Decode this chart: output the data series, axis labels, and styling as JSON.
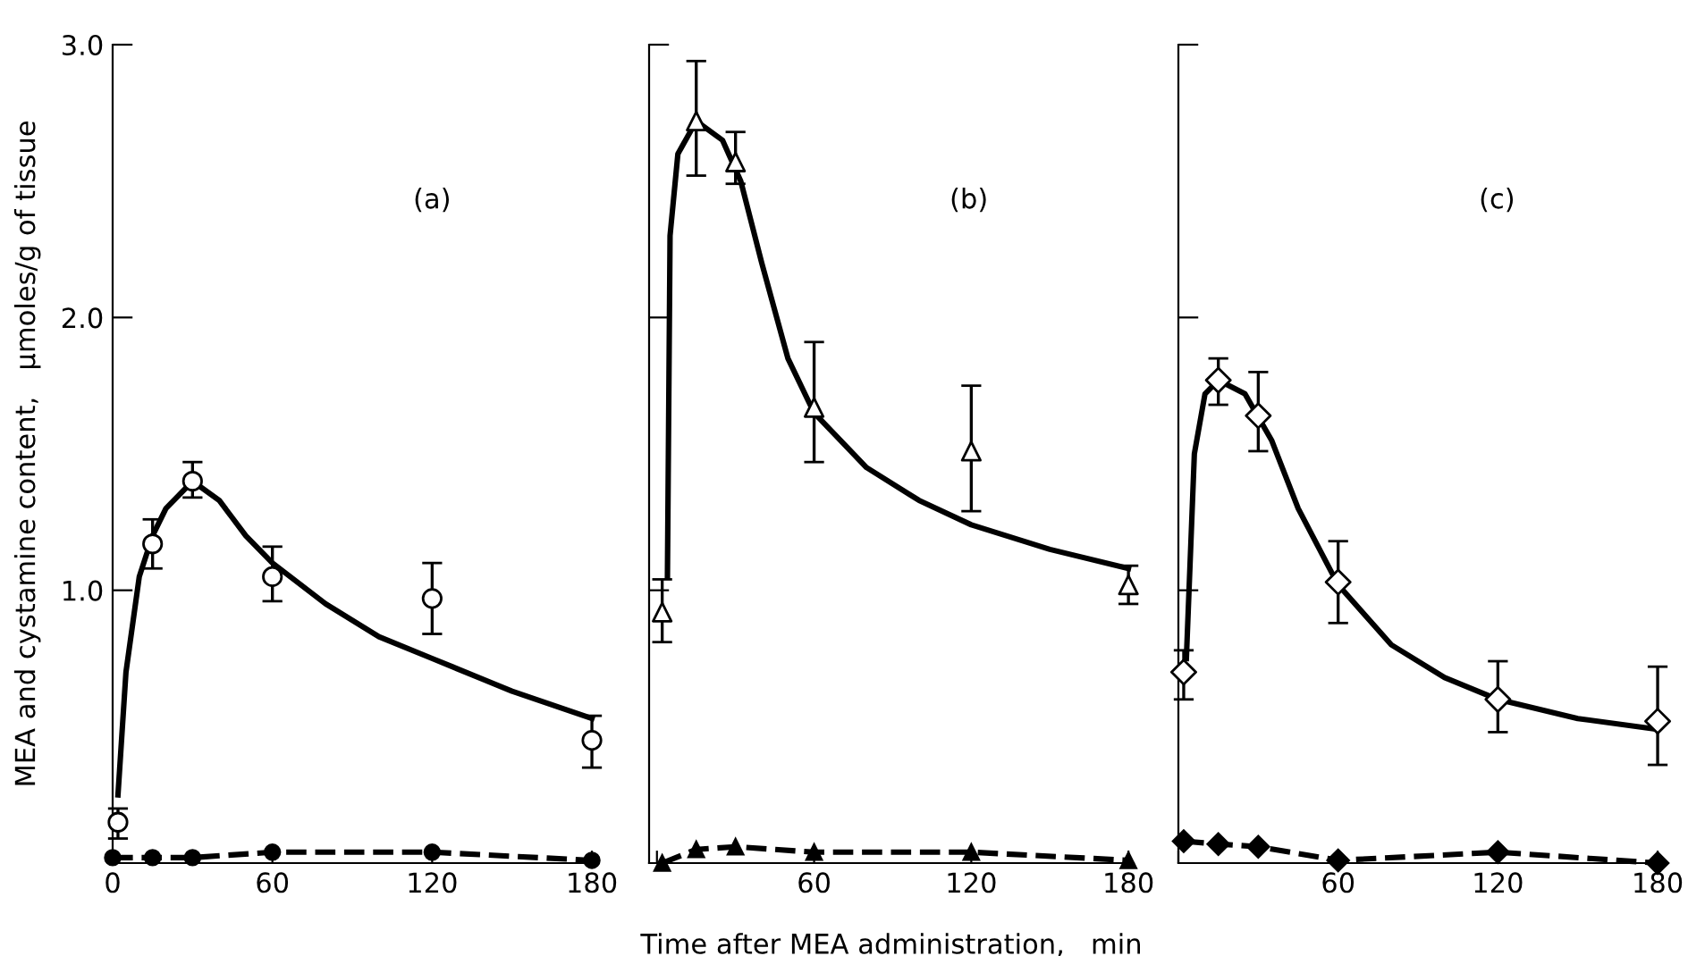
{
  "chart_data": [
    {
      "type": "scatter",
      "ylabel": "MEA and cystamine content,   μmoles/g of tissue",
      "annotations": [
        "(a)"
      ],
      "xlim": [
        0,
        182
      ],
      "ylim": [
        0,
        3.0
      ],
      "xticks": [
        0,
        60,
        120,
        180
      ],
      "yticks": [
        {
          "value": 1.0,
          "label": "1.0"
        },
        {
          "value": 2.0,
          "label": "2.0"
        },
        {
          "value": 3.0,
          "label": "3.0"
        }
      ],
      "grid": false,
      "legend": false,
      "series": [
        {
          "marker": "circle",
          "color": "#000000",
          "x": [
            2,
            15,
            30,
            60,
            120,
            180
          ],
          "values": [
            0.15,
            1.17,
            1.4,
            1.05,
            0.97,
            0.45
          ],
          "errors": [
            [
              0.09,
              0.2
            ],
            [
              1.08,
              1.26
            ],
            [
              1.34,
              1.47
            ],
            [
              0.96,
              1.16
            ],
            [
              0.84,
              1.1
            ],
            [
              0.35,
              0.54
            ]
          ]
        },
        {
          "type": "line",
          "marker": "none",
          "line_style": "solid",
          "color": "#000000",
          "x": [
            2,
            5,
            10,
            15,
            20,
            30,
            40,
            50,
            60,
            80,
            100,
            120,
            150,
            180
          ],
          "values": [
            0.25,
            0.7,
            1.05,
            1.2,
            1.3,
            1.4,
            1.33,
            1.2,
            1.1,
            0.95,
            0.83,
            0.75,
            0.63,
            0.53
          ]
        },
        {
          "type": "line",
          "marker": "circle",
          "line_style": "dashed",
          "color": "#000000",
          "x": [
            0,
            15,
            30,
            60,
            120,
            180
          ],
          "values": [
            0.02,
            0.02,
            0.02,
            0.04,
            0.04,
            0.01
          ]
        }
      ]
    },
    {
      "type": "scatter",
      "xlabel": "Time after MEA administration,   min",
      "annotations": [
        "(b)"
      ],
      "xlim": [
        -3,
        182
      ],
      "ylim": [
        0,
        3.0
      ],
      "xticks": [
        {
          "value": 0,
          "label": null
        },
        60,
        120,
        180
      ],
      "yticks": [
        {
          "value": 1.0,
          "label": null
        },
        {
          "value": 2.0,
          "label": null
        },
        {
          "value": 3.0,
          "label": null
        }
      ],
      "tick_labels": "x",
      "grid": false,
      "legend": false,
      "series": [
        {
          "marker": "triangle",
          "color": "#000000",
          "x": [
            2,
            15,
            30,
            60,
            120,
            180
          ],
          "values": [
            0.92,
            2.72,
            2.57,
            1.67,
            1.51,
            1.02
          ],
          "errors": [
            [
              0.81,
              1.04
            ],
            [
              2.52,
              2.94
            ],
            [
              2.49,
              2.68
            ],
            [
              1.47,
              1.91
            ],
            [
              1.29,
              1.75
            ],
            [
              0.95,
              1.09
            ]
          ]
        },
        {
          "type": "line",
          "marker": "none",
          "line_style": "solid",
          "color": "#000000",
          "x": [
            4,
            5,
            8,
            15,
            25,
            32,
            40,
            50,
            60,
            80,
            100,
            120,
            150,
            180
          ],
          "values": [
            1.05,
            2.3,
            2.6,
            2.72,
            2.65,
            2.5,
            2.2,
            1.85,
            1.65,
            1.45,
            1.33,
            1.24,
            1.15,
            1.08
          ]
        },
        {
          "type": "line",
          "marker": "triangle",
          "line_style": "dashed",
          "color": "#000000",
          "x": [
            2,
            15,
            30,
            60,
            120,
            180
          ],
          "values": [
            0.0,
            0.05,
            0.06,
            0.04,
            0.04,
            0.01
          ]
        }
      ]
    },
    {
      "type": "scatter",
      "annotations": [
        "(c)"
      ],
      "xlim": [
        0,
        182
      ],
      "ylim": [
        0,
        3.0
      ],
      "xticks": [
        {
          "value": 0,
          "label": null
        },
        60,
        120,
        180
      ],
      "yticks": [
        {
          "value": 1.0,
          "label": null
        },
        {
          "value": 2.0,
          "label": null
        },
        {
          "value": 3.0,
          "label": null
        }
      ],
      "tick_labels": "x",
      "grid": false,
      "legend": false,
      "series": [
        {
          "marker": "diamond",
          "color": "#000000",
          "x": [
            2,
            15,
            30,
            60,
            120,
            180
          ],
          "values": [
            0.7,
            1.77,
            1.64,
            1.03,
            0.6,
            0.52
          ],
          "errors": [
            [
              0.6,
              0.78
            ],
            [
              1.68,
              1.85
            ],
            [
              1.51,
              1.8
            ],
            [
              0.88,
              1.18
            ],
            [
              0.48,
              0.74
            ],
            [
              0.36,
              0.72
            ]
          ]
        },
        {
          "type": "line",
          "marker": "none",
          "line_style": "solid",
          "color": "#000000",
          "x": [
            3,
            6,
            10,
            15,
            25,
            35,
            45,
            60,
            80,
            100,
            120,
            150,
            180
          ],
          "values": [
            0.75,
            1.5,
            1.72,
            1.77,
            1.72,
            1.55,
            1.3,
            1.02,
            0.8,
            0.68,
            0.6,
            0.53,
            0.49
          ]
        },
        {
          "type": "line",
          "marker": "diamond",
          "line_style": "dashed",
          "color": "#000000",
          "x": [
            2,
            15,
            30,
            60,
            120,
            180
          ],
          "values": [
            0.08,
            0.07,
            0.06,
            0.01,
            0.04,
            0.0
          ]
        }
      ]
    }
  ]
}
